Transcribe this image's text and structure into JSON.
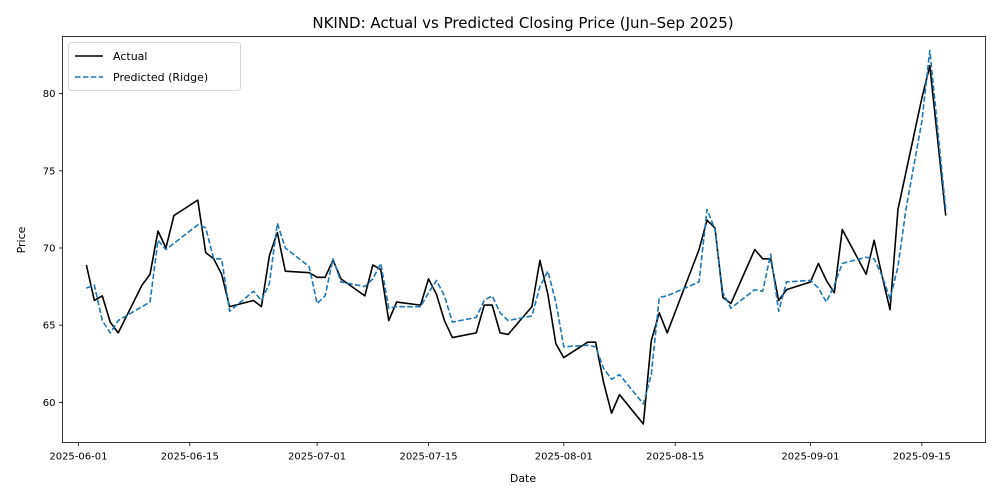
{
  "chart_data": {
    "type": "line",
    "title": "NKIND: Actual vs Predicted Closing Price (Jun–Sep 2025)",
    "xlabel": "Date",
    "ylabel": "Price",
    "x_range": [
      "2025-05-30",
      "2025-09-23"
    ],
    "ylim": [
      57.4,
      83.7
    ],
    "x_ticks": [
      "2025-06-01",
      "2025-06-15",
      "2025-07-01",
      "2025-07-15",
      "2025-08-01",
      "2025-08-15",
      "2025-09-01",
      "2025-09-15"
    ],
    "y_ticks": [
      60,
      65,
      70,
      75,
      80
    ],
    "grid": false,
    "legend_position": "top-left",
    "series": [
      {
        "name": "Actual",
        "color": "#000000",
        "style": "solid",
        "points": [
          [
            "2025-06-02",
            68.9
          ],
          [
            "2025-06-03",
            66.6
          ],
          [
            "2025-06-04",
            66.9
          ],
          [
            "2025-06-05",
            65.2
          ],
          [
            "2025-06-06",
            64.5
          ],
          [
            "2025-06-09",
            67.6
          ],
          [
            "2025-06-10",
            68.3
          ],
          [
            "2025-06-11",
            71.1
          ],
          [
            "2025-06-12",
            70.0
          ],
          [
            "2025-06-13",
            72.1
          ],
          [
            "2025-06-16",
            73.1
          ],
          [
            "2025-06-17",
            69.7
          ],
          [
            "2025-06-18",
            69.3
          ],
          [
            "2025-06-19",
            68.3
          ],
          [
            "2025-06-20",
            66.2
          ],
          [
            "2025-06-23",
            66.6
          ],
          [
            "2025-06-24",
            66.2
          ],
          [
            "2025-06-25",
            69.5
          ],
          [
            "2025-06-26",
            71.0
          ],
          [
            "2025-06-27",
            68.5
          ],
          [
            "2025-06-30",
            68.4
          ],
          [
            "2025-07-01",
            68.1
          ],
          [
            "2025-07-02",
            68.1
          ],
          [
            "2025-07-03",
            69.2
          ],
          [
            "2025-07-04",
            68.0
          ],
          [
            "2025-07-07",
            66.9
          ],
          [
            "2025-07-08",
            68.9
          ],
          [
            "2025-07-09",
            68.6
          ],
          [
            "2025-07-10",
            65.3
          ],
          [
            "2025-07-11",
            66.5
          ],
          [
            "2025-07-14",
            66.3
          ],
          [
            "2025-07-15",
            68.0
          ],
          [
            "2025-07-16",
            67.0
          ],
          [
            "2025-07-17",
            65.3
          ],
          [
            "2025-07-18",
            64.2
          ],
          [
            "2025-07-21",
            64.5
          ],
          [
            "2025-07-22",
            66.3
          ],
          [
            "2025-07-23",
            66.3
          ],
          [
            "2025-07-24",
            64.5
          ],
          [
            "2025-07-25",
            64.4
          ],
          [
            "2025-07-28",
            66.2
          ],
          [
            "2025-07-29",
            69.2
          ],
          [
            "2025-07-30",
            67.0
          ],
          [
            "2025-07-31",
            63.8
          ],
          [
            "2025-08-01",
            62.9
          ],
          [
            "2025-08-04",
            63.9
          ],
          [
            "2025-08-05",
            63.9
          ],
          [
            "2025-08-06",
            61.3
          ],
          [
            "2025-08-07",
            59.3
          ],
          [
            "2025-08-08",
            60.5
          ],
          [
            "2025-08-11",
            58.6
          ],
          [
            "2025-08-12",
            64.0
          ],
          [
            "2025-08-13",
            65.8
          ],
          [
            "2025-08-14",
            64.5
          ],
          [
            "2025-08-18",
            69.9
          ],
          [
            "2025-08-19",
            71.8
          ],
          [
            "2025-08-20",
            71.3
          ],
          [
            "2025-08-21",
            66.8
          ],
          [
            "2025-08-22",
            66.4
          ],
          [
            "2025-08-25",
            69.9
          ],
          [
            "2025-08-26",
            69.3
          ],
          [
            "2025-08-27",
            69.3
          ],
          [
            "2025-08-28",
            66.6
          ],
          [
            "2025-08-29",
            67.3
          ],
          [
            "2025-09-01",
            67.8
          ],
          [
            "2025-09-02",
            69.0
          ],
          [
            "2025-09-03",
            67.9
          ],
          [
            "2025-09-04",
            67.1
          ],
          [
            "2025-09-05",
            71.2
          ],
          [
            "2025-09-08",
            68.3
          ],
          [
            "2025-09-09",
            70.5
          ],
          [
            "2025-09-10",
            68.2
          ],
          [
            "2025-09-11",
            66.0
          ],
          [
            "2025-09-12",
            72.5
          ],
          [
            "2025-09-15",
            79.7
          ],
          [
            "2025-09-16",
            81.8
          ],
          [
            "2025-09-18",
            72.1
          ]
        ]
      },
      {
        "name": "Predicted (Ridge)",
        "color": "#1f77b4",
        "style": "dashed",
        "points": [
          [
            "2025-06-02",
            67.4
          ],
          [
            "2025-06-03",
            67.6
          ],
          [
            "2025-06-04",
            65.3
          ],
          [
            "2025-06-05",
            64.5
          ],
          [
            "2025-06-06",
            65.3
          ],
          [
            "2025-06-09",
            66.2
          ],
          [
            "2025-06-10",
            66.5
          ],
          [
            "2025-06-11",
            70.5
          ],
          [
            "2025-06-12",
            69.9
          ],
          [
            "2025-06-13",
            70.3
          ],
          [
            "2025-06-16",
            71.5
          ],
          [
            "2025-06-17",
            71.3
          ],
          [
            "2025-06-18",
            69.3
          ],
          [
            "2025-06-19",
            69.3
          ],
          [
            "2025-06-20",
            65.9
          ],
          [
            "2025-06-23",
            67.2
          ],
          [
            "2025-06-24",
            66.6
          ],
          [
            "2025-06-25",
            67.7
          ],
          [
            "2025-06-26",
            71.6
          ],
          [
            "2025-06-27",
            70.0
          ],
          [
            "2025-06-30",
            68.8
          ],
          [
            "2025-07-01",
            66.4
          ],
          [
            "2025-07-02",
            66.9
          ],
          [
            "2025-07-03",
            69.3
          ],
          [
            "2025-07-04",
            67.8
          ],
          [
            "2025-07-07",
            67.5
          ],
          [
            "2025-07-08",
            68.0
          ],
          [
            "2025-07-09",
            69.0
          ],
          [
            "2025-07-10",
            66.1
          ],
          [
            "2025-07-11",
            66.2
          ],
          [
            "2025-07-14",
            66.2
          ],
          [
            "2025-07-15",
            67.1
          ],
          [
            "2025-07-16",
            67.9
          ],
          [
            "2025-07-17",
            66.9
          ],
          [
            "2025-07-18",
            65.2
          ],
          [
            "2025-07-21",
            65.5
          ],
          [
            "2025-07-22",
            66.6
          ],
          [
            "2025-07-23",
            66.9
          ],
          [
            "2025-07-24",
            65.8
          ],
          [
            "2025-07-25",
            65.3
          ],
          [
            "2025-07-28",
            65.6
          ],
          [
            "2025-07-29",
            67.5
          ],
          [
            "2025-07-30",
            68.5
          ],
          [
            "2025-07-31",
            66.5
          ],
          [
            "2025-08-01",
            63.6
          ],
          [
            "2025-08-04",
            63.7
          ],
          [
            "2025-08-05",
            63.6
          ],
          [
            "2025-08-06",
            62.2
          ],
          [
            "2025-08-07",
            61.5
          ],
          [
            "2025-08-08",
            61.8
          ],
          [
            "2025-08-11",
            59.9
          ],
          [
            "2025-08-12",
            61.8
          ],
          [
            "2025-08-13",
            66.8
          ],
          [
            "2025-08-14",
            66.9
          ],
          [
            "2025-08-18",
            67.8
          ],
          [
            "2025-08-19",
            72.5
          ],
          [
            "2025-08-20",
            71.2
          ],
          [
            "2025-08-21",
            67.1
          ],
          [
            "2025-08-22",
            66.1
          ],
          [
            "2025-08-25",
            67.3
          ],
          [
            "2025-08-26",
            67.2
          ],
          [
            "2025-08-27",
            69.6
          ],
          [
            "2025-08-28",
            65.9
          ],
          [
            "2025-08-29",
            67.8
          ],
          [
            "2025-09-01",
            67.9
          ],
          [
            "2025-09-02",
            67.4
          ],
          [
            "2025-09-03",
            66.5
          ],
          [
            "2025-09-04",
            67.6
          ],
          [
            "2025-09-05",
            69.0
          ],
          [
            "2025-09-08",
            69.4
          ],
          [
            "2025-09-09",
            69.3
          ],
          [
            "2025-09-10",
            68.2
          ],
          [
            "2025-09-11",
            66.7
          ],
          [
            "2025-09-12",
            68.8
          ],
          [
            "2025-09-13",
            72.5
          ],
          [
            "2025-09-15",
            78.2
          ],
          [
            "2025-09-16",
            82.8
          ],
          [
            "2025-09-18",
            72.5
          ]
        ]
      }
    ]
  }
}
